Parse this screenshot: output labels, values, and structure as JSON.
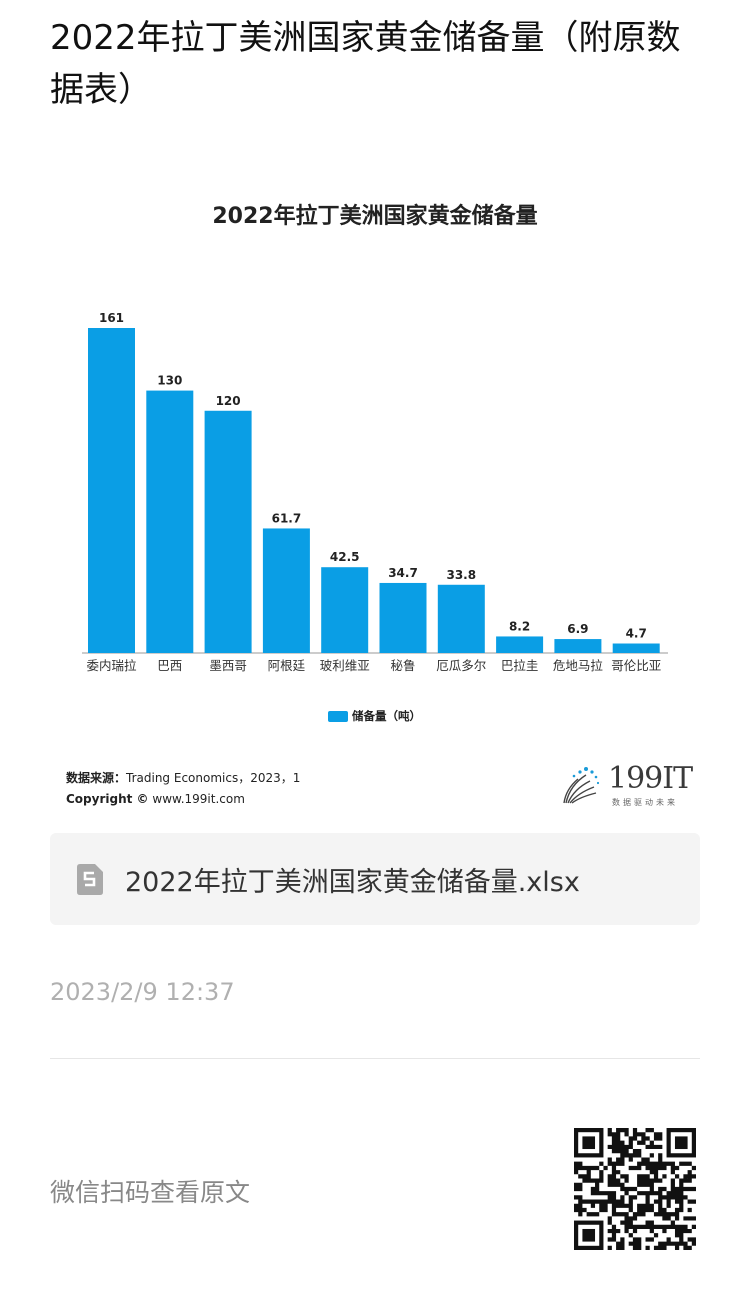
{
  "article": {
    "title": "2022年拉丁美洲国家黄金储备量（附原数据表）",
    "timestamp": "2023/2/9 12:37",
    "scan_hint": "微信扫码查看原文"
  },
  "source": {
    "label": "数据来源：",
    "text": "Trading Economics，2023，1",
    "copyright_label": "Copyright ©",
    "copyright_text": "www.199it.com"
  },
  "logo": {
    "text": "199IT",
    "tagline": "数据驱动未来"
  },
  "attachment": {
    "file_name": "2022年拉丁美洲国家黄金储备量.xlsx",
    "icon": "spreadsheet-file-icon"
  },
  "colors": {
    "bar": "#0a9ee5"
  },
  "chart_data": {
    "type": "bar",
    "title": "2022年拉丁美洲国家黄金储备量",
    "categories": [
      "委内瑞拉",
      "巴西",
      "墨西哥",
      "阿根廷",
      "玻利维亚",
      "秘鲁",
      "厄瓜多尔",
      "巴拉圭",
      "危地马拉",
      "哥伦比亚"
    ],
    "series": [
      {
        "name": "储备量（吨）",
        "values": [
          161,
          130,
          120,
          61.7,
          42.5,
          34.7,
          33.8,
          8.2,
          6.9,
          4.7
        ],
        "labels": [
          "161",
          "130",
          "120",
          "61.7",
          "42.5",
          "34.7",
          "33.8",
          "8.2",
          "6.9",
          "4.7"
        ]
      }
    ],
    "xlabel": "",
    "ylabel": "",
    "ylim": [
      0,
      161
    ],
    "grid": false,
    "legend": "bottom-center"
  }
}
